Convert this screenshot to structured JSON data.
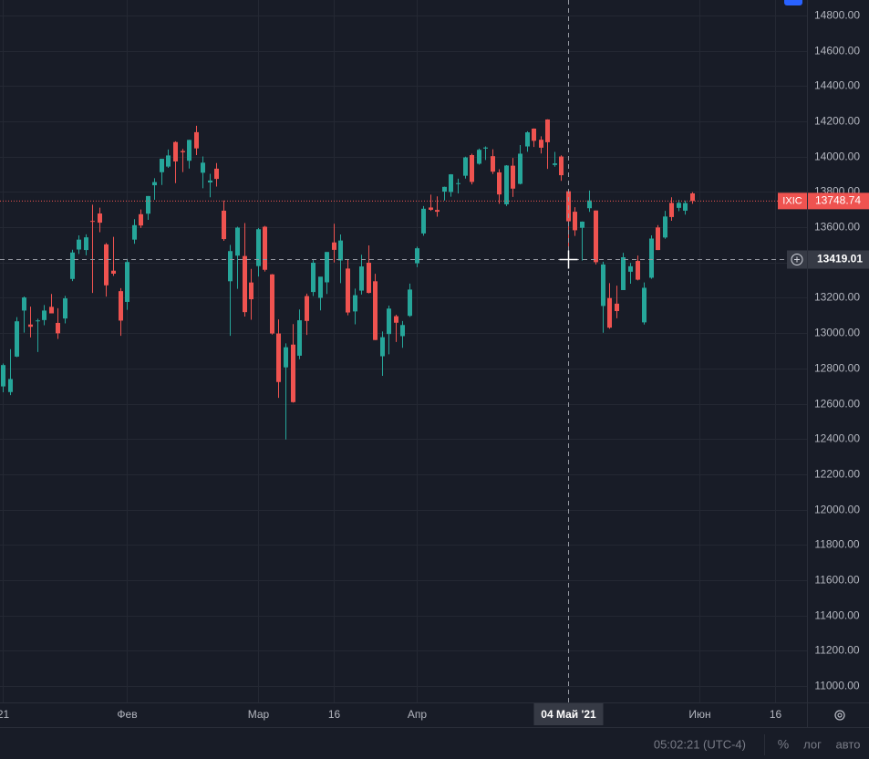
{
  "chart_data": {
    "type": "candlestick",
    "symbol": "IXIC",
    "up_color": "#26a69a",
    "down_color": "#ef5350",
    "grid": true,
    "ylim": [
      10907,
      14888
    ],
    "yticks": [
      {
        "value": 11000,
        "label": "11000.00"
      },
      {
        "value": 11200,
        "label": "11200.00"
      },
      {
        "value": 11400,
        "label": "11400.00"
      },
      {
        "value": 11600,
        "label": "11600.00"
      },
      {
        "value": 11800,
        "label": "11800.00"
      },
      {
        "value": 12000,
        "label": "12000.00"
      },
      {
        "value": 12200,
        "label": "12200.00"
      },
      {
        "value": 12400,
        "label": "12400.00"
      },
      {
        "value": 12600,
        "label": "12600.00"
      },
      {
        "value": 12800,
        "label": "12800.00"
      },
      {
        "value": 13000,
        "label": "13000.00"
      },
      {
        "value": 13200,
        "label": "13200.00"
      },
      {
        "value": 13400,
        "label": "13400.00"
      },
      {
        "value": 13600,
        "label": "13600.00"
      },
      {
        "value": 13800,
        "label": "13800.00"
      },
      {
        "value": 14000,
        "label": "14000.00"
      },
      {
        "value": 14200,
        "label": "14200.00"
      },
      {
        "value": 14400,
        "label": "14400.00"
      },
      {
        "value": 14600,
        "label": "14600.00"
      },
      {
        "value": 14800,
        "label": "14800.00"
      }
    ],
    "xticks": [
      {
        "value": 0,
        "label": "21"
      },
      {
        "value": 18,
        "label": "Фев"
      },
      {
        "value": 37,
        "label": "Мар"
      },
      {
        "value": 48,
        "label": "16"
      },
      {
        "value": 60,
        "label": "Апр"
      },
      {
        "value": 101,
        "label": "Июн"
      },
      {
        "value": 112,
        "label": "16"
      }
    ],
    "open": [
      12698,
      12666,
      12867,
      13128,
      13049,
      13072,
      13074,
      13149,
      13058,
      13083,
      13307,
      13474,
      13471,
      13636,
      13678,
      13503,
      13354,
      13238,
      13177,
      13530,
      13674,
      13677,
      13838,
      13912,
      13944,
      14083,
      14032,
      13977,
      14139,
      13909,
      13854,
      13932,
      13694,
      13294,
      13439,
      13437,
      13287,
      13380,
      13603,
      13333,
      12998,
      12806,
      12935,
      12872,
      13210,
      13233,
      13200,
      13288,
      13514,
      13412,
      13366,
      13123,
      13241,
      13399,
      13294,
      12869,
      12995,
      13096,
      12983,
      13098,
      13396,
      13565,
      13712,
      13698,
      13802,
      13800,
      13846,
      13892,
      14009,
      13960,
      14046,
      14003,
      13911,
      13730,
      13949,
      13846,
      14058,
      14159,
      14096,
      14211,
      13953,
      14001,
      13804,
      13688,
      13597,
      13708,
      13695,
      13154,
      13199,
      13167,
      13244,
      13348,
      13409,
      13061,
      13314,
      13599,
      13542,
      13738,
      13710,
      13694,
      13792
    ],
    "high": [
      12828,
      12909,
      13091,
      13208,
      13150,
      13082,
      13159,
      13222,
      13141,
      13211,
      13473,
      13554,
      13560,
      13728,
      13711,
      13511,
      13546,
      13255,
      13421,
      13646,
      13701,
      13777,
      13878,
      13988,
      14041,
      14087,
      14044,
      14096,
      14175,
      14001,
      13903,
      13964,
      13752,
      13500,
      13603,
      13624,
      13364,
      13596,
      13608,
      13335,
      13078,
      12942,
      13051,
      13134,
      13224,
      13414,
      13319,
      13460,
      13620,
      13559,
      13415,
      13252,
      13444,
      13497,
      13336,
      13009,
      13156,
      13104,
      13069,
      13281,
      13490,
      13720,
      13785,
      13775,
      13830,
      13901,
      13875,
      14000,
      14017,
      14046,
      14058,
      14042,
      13929,
      13952,
      13993,
      14066,
      14144,
      14160,
      14116,
      14212,
      14027,
      14008,
      13804,
      13714,
      13633,
      13808,
      13695,
      13405,
      13283,
      13269,
      13455,
      13398,
      13440,
      13287,
      13554,
      13612,
      13693,
      13770,
      13755,
      13751,
      13799
    ],
    "low": [
      12665,
      12649,
      12864,
      13003,
      12976,
      12893,
      13045,
      13112,
      12967,
      13055,
      13295,
      13449,
      13441,
      13228,
      13572,
      13207,
      13325,
      12985,
      13132,
      13506,
      13596,
      13642,
      13756,
      13840,
      13937,
      13850,
      13913,
      13933,
      14009,
      13821,
      13770,
      13831,
      13523,
      12985,
      13251,
      13094,
      13076,
      13321,
      13349,
      12992,
      12633,
      12397,
      12606,
      12852,
      12990,
      13210,
      13129,
      13222,
      13400,
      13283,
      13101,
      13050,
      13219,
      13225,
      12961,
      12758,
      12880,
      12950,
      12917,
      13092,
      13374,
      13552,
      13693,
      13660,
      13751,
      13773,
      13792,
      13876,
      13843,
      13955,
      13981,
      13902,
      13733,
      13720,
      13772,
      13843,
      14028,
      14055,
      14018,
      13931,
      13943,
      13863,
      13433,
      13551,
      13411,
      13687,
      13389,
      13002,
      13025,
      13084,
      13244,
      13280,
      13299,
      13049,
      13308,
      13471,
      13535,
      13637,
      13691,
      13672,
      13733
    ],
    "close": [
      12819,
      12740,
      13067,
      13202,
      13036,
      13072,
      13128,
      13112,
      12999,
      13197,
      13457,
      13530,
      13543,
      13635,
      13626,
      13271,
      13337,
      13071,
      13403,
      13612,
      13610,
      13777,
      13856,
      13988,
      14007,
      13973,
      14025,
      14095,
      14047,
      13966,
      13865,
      13874,
      13533,
      13465,
      13598,
      13119,
      13192,
      13589,
      13359,
      12998,
      12723,
      12920,
      12609,
      13073,
      13069,
      13399,
      13320,
      13460,
      13472,
      13525,
      13117,
      13215,
      13378,
      13228,
      12961,
      12977,
      13139,
      13059,
      13046,
      13247,
      13481,
      13705,
      13699,
      13688,
      13829,
      13900,
      13850,
      13996,
      13857,
      14039,
      14052,
      13915,
      13786,
      13950,
      13819,
      14017,
      14138,
      14090,
      14051,
      14082,
      13962,
      13895,
      13634,
      13583,
      13632,
      13752,
      13402,
      13389,
      13031,
      13125,
      13430,
      13379,
      13303,
      13257,
      13536,
      13471,
      13661,
      13658,
      13738,
      13737,
      13748.74
    ],
    "last_price": 13748.74,
    "crosshair": {
      "value": 82,
      "label": "04 Май '21",
      "price": 13419.01
    },
    "status_bar": {
      "time": "05:02:21 (UTC-4)",
      "percent": "%",
      "log": "лог",
      "auto": "авто"
    }
  }
}
